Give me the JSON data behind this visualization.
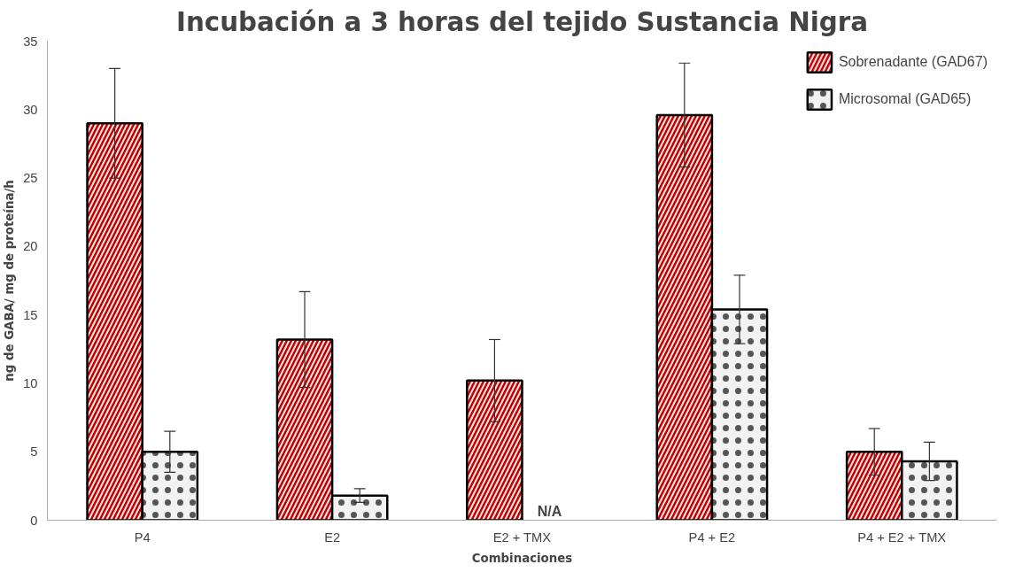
{
  "chart_data": {
    "type": "bar",
    "title": "Incubación a 3 horas del tejido Sustancia Nigra",
    "xlabel": "Combinaciones",
    "ylabel": "ng de GABA/ mg de proteína/h",
    "categories": [
      "P4",
      "E2",
      "E2 + TMX",
      "P4 + E2",
      "P4 + E2 + TMX"
    ],
    "series": [
      {
        "name": "Sobrenadante (GAD67)",
        "color": "#c00000",
        "values": [
          29.0,
          13.2,
          10.2,
          29.6,
          5.0
        ],
        "errors": [
          4.0,
          3.5,
          3.0,
          3.8,
          1.7
        ]
      },
      {
        "name": "Microsomal (GAD65)",
        "color": "#f2f2f2",
        "values": [
          5.0,
          1.8,
          null,
          15.4,
          4.3
        ],
        "errors": [
          1.5,
          0.5,
          null,
          2.5,
          1.4
        ]
      }
    ],
    "annotations": [
      {
        "text": "N/A",
        "x": "E2 + TMX",
        "y": 0
      }
    ],
    "ylim": [
      0,
      35
    ],
    "yticks": [
      0,
      5,
      10,
      15,
      20,
      25,
      30,
      35
    ],
    "grid": false,
    "legend": "top right"
  }
}
